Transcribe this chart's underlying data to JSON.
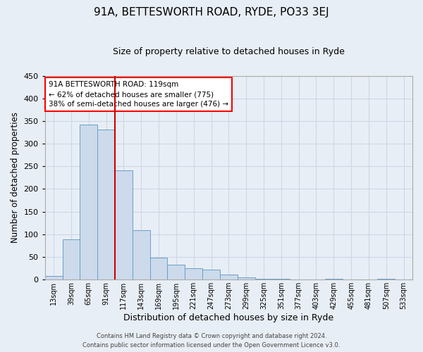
{
  "title": "91A, BETTESWORTH ROAD, RYDE, PO33 3EJ",
  "subtitle": "Size of property relative to detached houses in Ryde",
  "xlabel": "Distribution of detached houses by size in Ryde",
  "ylabel": "Number of detached properties",
  "bar_color": "#ccdaeb",
  "bar_edge_color": "#6a9fc8",
  "bin_labels": [
    "13sqm",
    "39sqm",
    "65sqm",
    "91sqm",
    "117sqm",
    "143sqm",
    "169sqm",
    "195sqm",
    "221sqm",
    "247sqm",
    "273sqm",
    "299sqm",
    "325sqm",
    "351sqm",
    "377sqm",
    "403sqm",
    "429sqm",
    "455sqm",
    "481sqm",
    "507sqm",
    "533sqm"
  ],
  "bar_heights": [
    7,
    88,
    343,
    332,
    241,
    109,
    48,
    32,
    25,
    22,
    10,
    5,
    1,
    1,
    0,
    0,
    1,
    0,
    0,
    1,
    0
  ],
  "ylim": [
    0,
    450
  ],
  "yticks": [
    0,
    50,
    100,
    150,
    200,
    250,
    300,
    350,
    400,
    450
  ],
  "vline_x": 4.0,
  "annotation_title": "91A BETTESWORTH ROAD: 119sqm",
  "annotation_line1": "← 62% of detached houses are smaller (775)",
  "annotation_line2": "38% of semi-detached houses are larger (476) →",
  "vline_color": "#cc0000",
  "grid_color": "#ccd8e8",
  "background_color": "#e8eef5",
  "footer1": "Contains HM Land Registry data © Crown copyright and database right 2024.",
  "footer2": "Contains public sector information licensed under the Open Government Licence v3.0."
}
